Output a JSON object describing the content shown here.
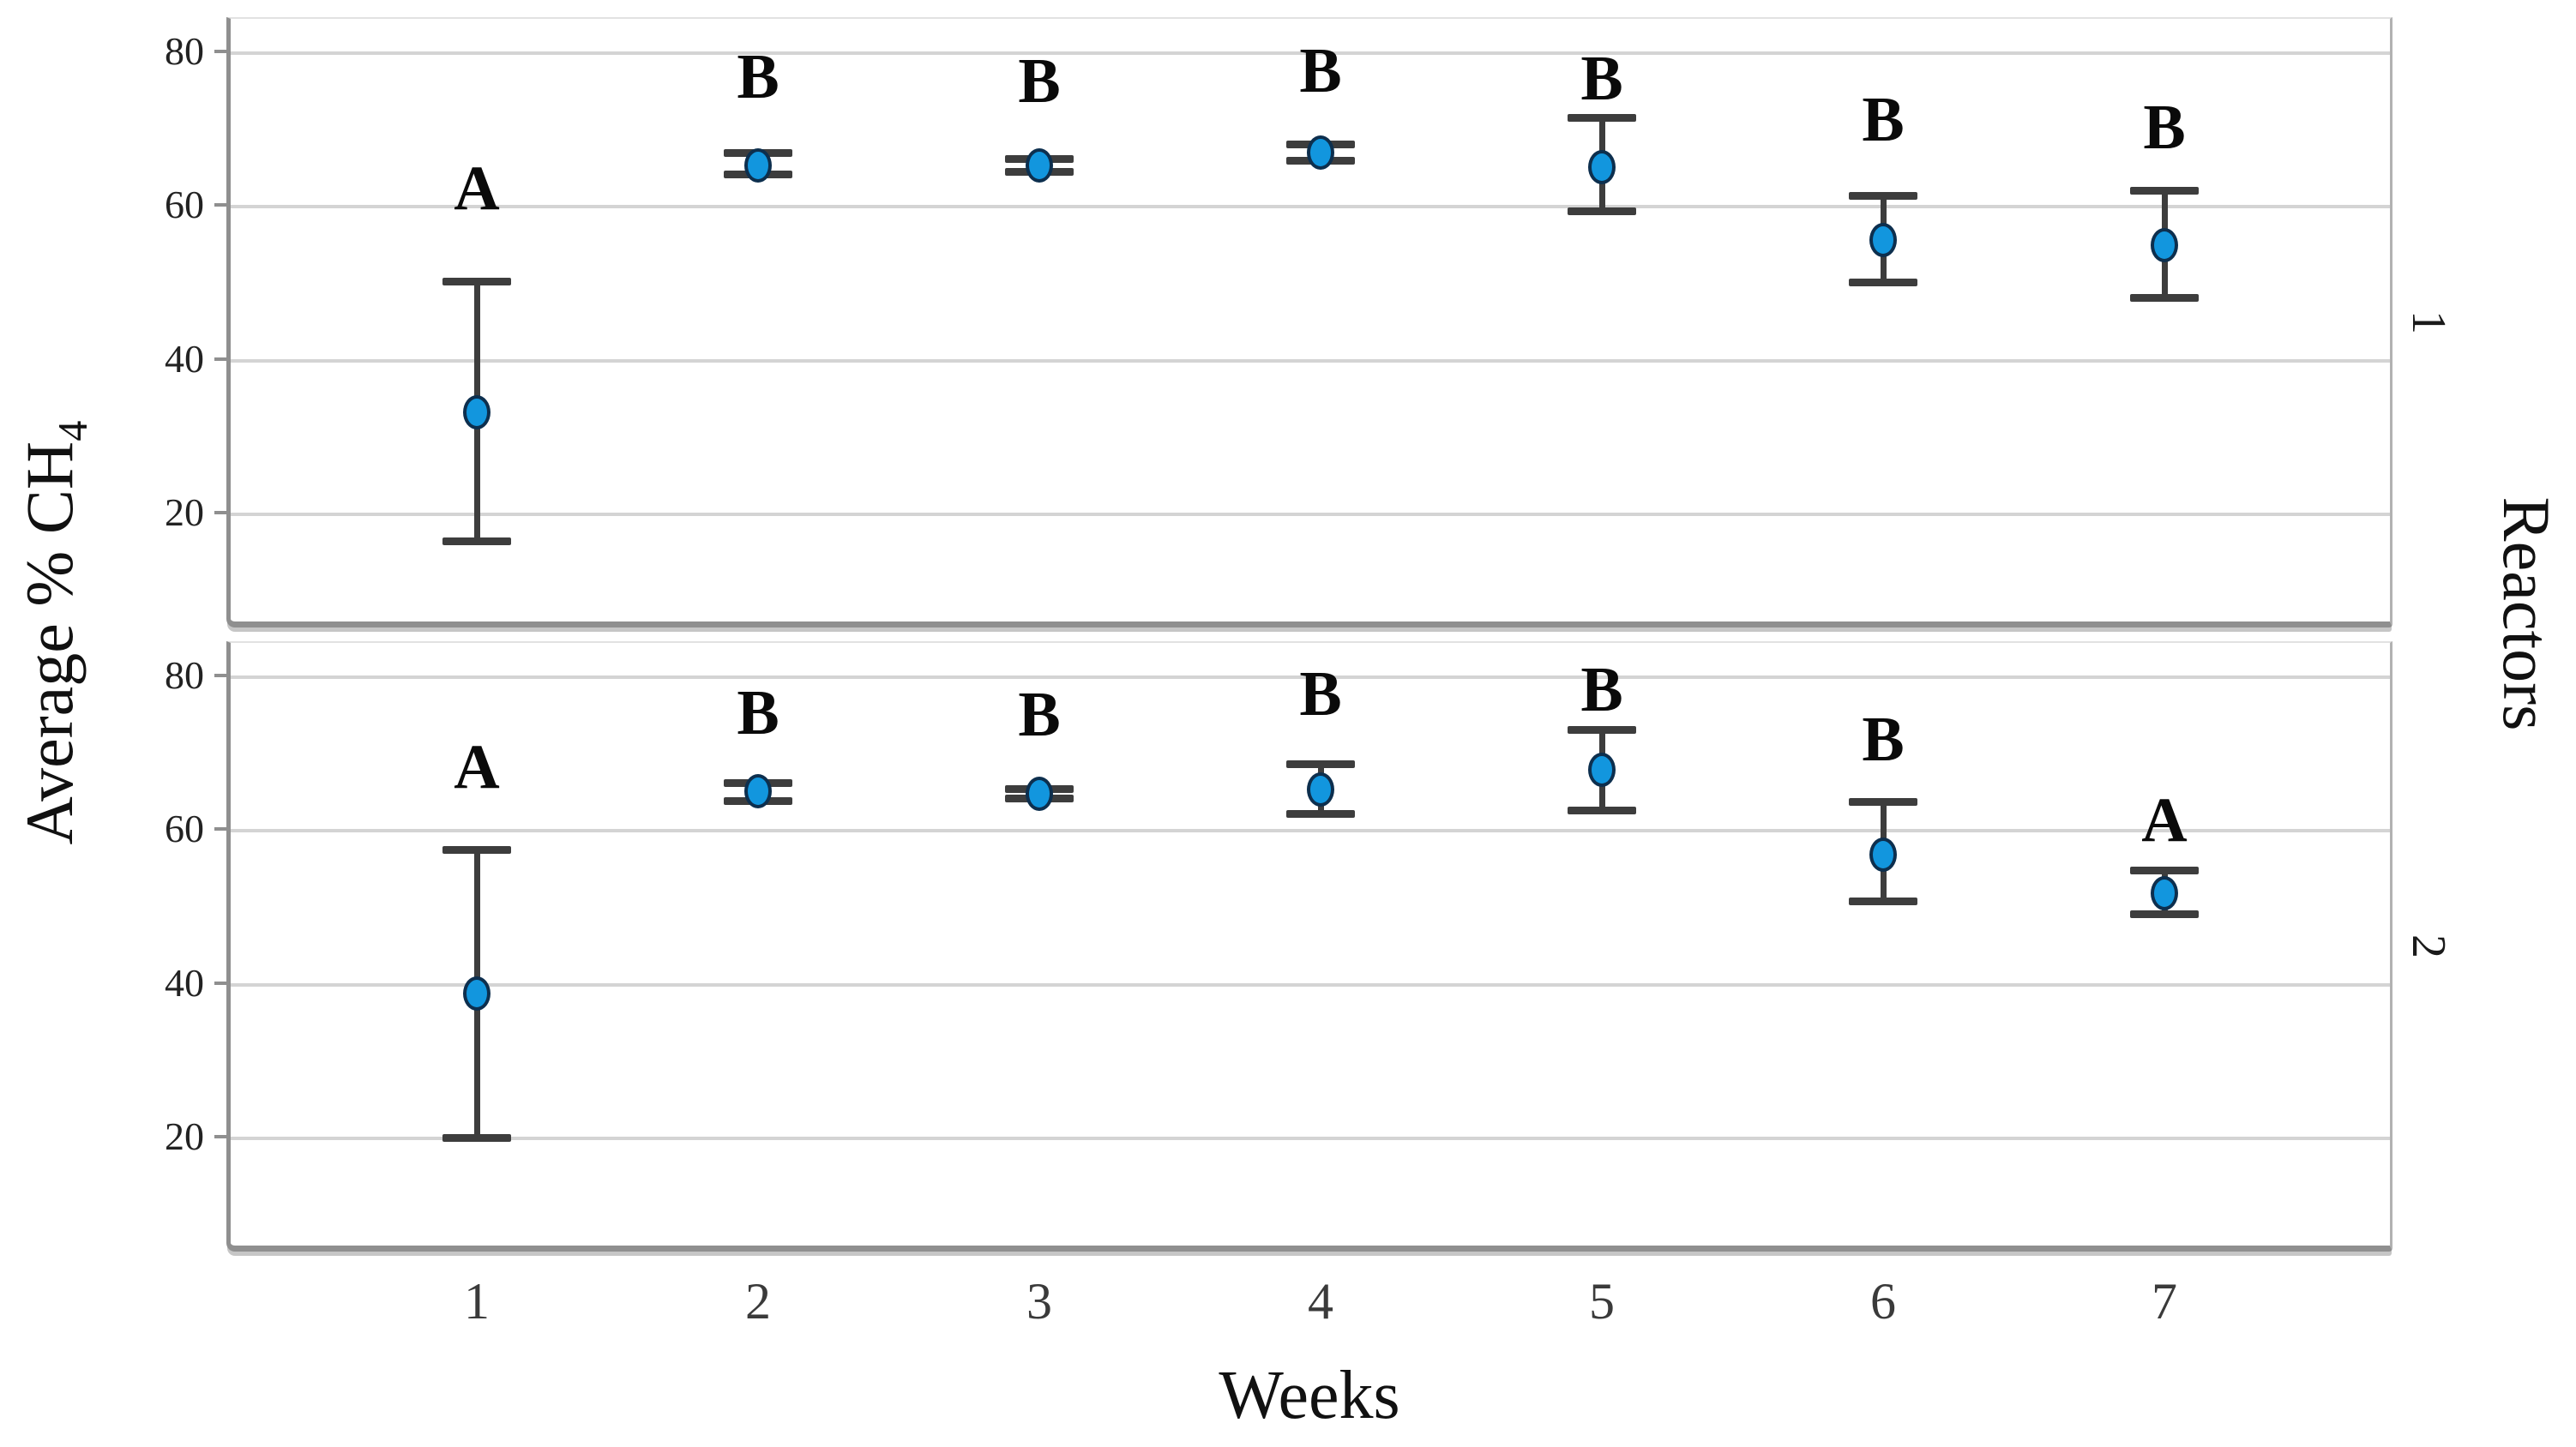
{
  "chart_data": {
    "type": "scatter",
    "subtype": "error-bar-plot-faceted",
    "xlabel": "Weeks",
    "ylabel": "Average % CH4",
    "ylabel_rich": {
      "main": "Average % CH",
      "sub": "4"
    },
    "facet_axis_title": "Reactors",
    "x_categories": [
      "1",
      "2",
      "3",
      "4",
      "5",
      "6",
      "7"
    ],
    "yticks": [
      80,
      60,
      40,
      20
    ],
    "ylim": [
      5,
      84.5
    ],
    "grid": "horizontal-major-only",
    "legend": "none",
    "marker_color": "#1296de",
    "marker_edge_color": "#0d2f4e",
    "error_bar_color": "#3d3d3d",
    "gridline_color": "#d4d4d4",
    "frame_color": "#8f8f8f",
    "panels": [
      {
        "reactor_label": "1",
        "points": [
          {
            "week": "1",
            "mean": 33.0,
            "lower": 16.2,
            "upper": 50.1,
            "letter": "A",
            "letter_y": 58.0
          },
          {
            "week": "2",
            "mean": 65.2,
            "lower": 63.9,
            "upper": 66.9,
            "letter": "B",
            "letter_y": 72.5
          },
          {
            "week": "3",
            "mean": 65.2,
            "lower": 64.3,
            "upper": 66.1,
            "letter": "B",
            "letter_y": 72.0
          },
          {
            "week": "4",
            "mean": 66.9,
            "lower": 65.7,
            "upper": 68.0,
            "letter": "B",
            "letter_y": 73.3
          },
          {
            "week": "5",
            "mean": 65.0,
            "lower": 59.1,
            "upper": 71.4,
            "letter": "B",
            "letter_y": 72.3
          },
          {
            "week": "6",
            "mean": 55.5,
            "lower": 49.9,
            "upper": 61.3,
            "letter": "B",
            "letter_y": 67.0
          },
          {
            "week": "7",
            "mean": 54.8,
            "lower": 47.9,
            "upper": 62.0,
            "letter": "B",
            "letter_y": 66.0
          }
        ]
      },
      {
        "reactor_label": "2",
        "points": [
          {
            "week": "1",
            "mean": 38.6,
            "lower": 19.7,
            "upper": 57.4,
            "letter": "A",
            "letter_y": 64.0
          },
          {
            "week": "2",
            "mean": 65.0,
            "lower": 63.6,
            "upper": 66.1,
            "letter": "B",
            "letter_y": 71.0
          },
          {
            "week": "3",
            "mean": 64.6,
            "lower": 63.9,
            "upper": 65.3,
            "letter": "B",
            "letter_y": 70.8
          },
          {
            "week": "4",
            "mean": 65.2,
            "lower": 62.0,
            "upper": 68.5,
            "letter": "B",
            "letter_y": 73.5
          },
          {
            "week": "5",
            "mean": 67.8,
            "lower": 62.4,
            "upper": 73.0,
            "letter": "B",
            "letter_y": 74.0
          },
          {
            "week": "6",
            "mean": 56.7,
            "lower": 50.6,
            "upper": 63.6,
            "letter": "B",
            "letter_y": 67.5
          },
          {
            "week": "7",
            "mean": 51.7,
            "lower": 48.9,
            "upper": 54.7,
            "letter": "A",
            "letter_y": 57.0
          }
        ]
      }
    ]
  }
}
